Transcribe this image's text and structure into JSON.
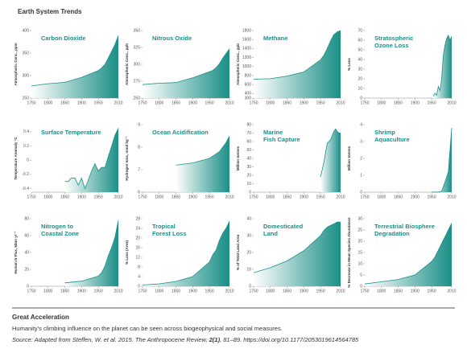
{
  "figure_title": "Earth System Trends",
  "caption": {
    "heading": "Great Acceleration",
    "text": "Humanity's climbing influence on the planet can be seen across biogeophysical and social measures.",
    "source": [
      "Source: Adapted from Steffen, W. et al. 2015. The Anthropocene Review, ",
      "2(1)",
      ", 81–89. https://doi.org/10.1177/2053019614564785"
    ]
  },
  "chart_data": [
    {
      "type": "area",
      "title": [
        "Carbon Dioxide"
      ],
      "y_label": "Atmospheric Conc., ppm",
      "x": [
        1750,
        1800,
        1850,
        1900,
        1950,
        1960,
        1970,
        1980,
        1990,
        2000,
        2010
      ],
      "values": [
        277,
        282,
        285,
        296,
        311,
        317,
        325,
        339,
        354,
        369,
        389
      ],
      "color": "#1a8f86",
      "xlim": [
        1750,
        2010
      ],
      "xticks": [
        1750,
        1800,
        1850,
        1900,
        1950,
        2010
      ],
      "ylim": [
        250,
        400
      ],
      "yticks": [
        250,
        300,
        350,
        400
      ]
    },
    {
      "type": "area",
      "title": [
        "Nitrous Oxide"
      ],
      "y_label": "Atmospheric Conc., ppb",
      "x": [
        1750,
        1800,
        1850,
        1900,
        1950,
        1960,
        1970,
        1980,
        1990,
        2000,
        2010
      ],
      "values": [
        270,
        272,
        273,
        280,
        289,
        291,
        295,
        301,
        309,
        316,
        323
      ],
      "color": "#1a8f86",
      "xlim": [
        1750,
        2010
      ],
      "xticks": [
        1750,
        1800,
        1850,
        1900,
        1950,
        2010
      ],
      "ylim": [
        250,
        350
      ],
      "yticks": [
        250,
        275,
        300,
        325,
        350
      ]
    },
    {
      "type": "area",
      "title": [
        "Methane"
      ],
      "y_label": "Atmospheric Conc., ppb",
      "x": [
        1750,
        1800,
        1850,
        1900,
        1950,
        1960,
        1970,
        1980,
        1990,
        2000,
        2010
      ],
      "values": [
        720,
        730,
        790,
        880,
        1150,
        1250,
        1400,
        1570,
        1710,
        1770,
        1800
      ],
      "color": "#1a8f86",
      "xlim": [
        1750,
        2010
      ],
      "xticks": [
        1750,
        1800,
        1850,
        1900,
        1950,
        2010
      ],
      "ylim": [
        300,
        1800
      ],
      "yticks": [
        300,
        400,
        600,
        800,
        1000,
        1200,
        1400,
        1600,
        1800
      ]
    },
    {
      "type": "area",
      "title": [
        "Stratospheric",
        "Ozone Loss"
      ],
      "y_label": "% Loss",
      "x": [
        1955,
        1960,
        1965,
        1970,
        1975,
        1980,
        1985,
        1990,
        1995,
        2000,
        2005,
        2010
      ],
      "values": [
        2,
        5,
        3,
        12,
        8,
        20,
        45,
        55,
        62,
        65,
        60,
        64
      ],
      "color": "#1a8f86",
      "xlim": [
        1750,
        2010
      ],
      "xticks": [
        1750,
        1800,
        1850,
        1900,
        1950,
        2010
      ],
      "ylim": [
        0,
        70
      ],
      "yticks": [
        0,
        10,
        20,
        30,
        40,
        50,
        60,
        70
      ]
    },
    {
      "type": "area",
      "title": [
        "Surface Temperature"
      ],
      "y_label": "Temperature Anomaly °C",
      "x": [
        1850,
        1860,
        1870,
        1880,
        1890,
        1900,
        1910,
        1920,
        1930,
        1940,
        1950,
        1960,
        1970,
        1980,
        1990,
        2000,
        2010
      ],
      "values": [
        -0.3,
        -0.3,
        -0.25,
        -0.25,
        -0.35,
        -0.25,
        -0.4,
        -0.28,
        -0.15,
        -0.05,
        -0.15,
        -0.1,
        -0.1,
        0.05,
        0.2,
        0.35,
        0.45
      ],
      "color": "#1a8f86",
      "xlim": [
        1750,
        2010
      ],
      "xticks": [
        1750,
        1800,
        1850,
        1900,
        1950,
        2010
      ],
      "ylim": [
        -0.45,
        0.5
      ],
      "yticks": [
        -0.4,
        -0.2,
        0,
        0.2,
        0.4
      ]
    },
    {
      "type": "area",
      "title": [
        "Ocean Acidification"
      ],
      "y_label": "Hydrogen Ions, nmol kg⁻¹",
      "x": [
        1850,
        1900,
        1950,
        1960,
        1970,
        1980,
        1990,
        2000,
        2010
      ],
      "values": [
        7.2,
        7.3,
        7.5,
        7.6,
        7.7,
        7.8,
        8.0,
        8.2,
        8.5
      ],
      "color": "#1a8f86",
      "xlim": [
        1750,
        2010
      ],
      "xticks": [
        1750,
        1800,
        1850,
        1900,
        1950,
        2010
      ],
      "ylim": [
        6,
        9
      ],
      "yticks": [
        6,
        7,
        8,
        9
      ]
    },
    {
      "type": "area",
      "title": [
        "Marine",
        "Fish Capture"
      ],
      "y_label": "Million tonnes",
      "x": [
        1950,
        1960,
        1970,
        1980,
        1990,
        1995,
        2000,
        2005,
        2010
      ],
      "values": [
        18,
        35,
        58,
        62,
        72,
        75,
        72,
        70,
        70
      ],
      "color": "#1a8f86",
      "xlim": [
        1750,
        2010
      ],
      "xticks": [
        1750,
        1800,
        1850,
        1900,
        1950,
        2010
      ],
      "ylim": [
        0,
        80
      ],
      "yticks": [
        0,
        10,
        20,
        30,
        40,
        50,
        60,
        70,
        80
      ]
    },
    {
      "type": "area",
      "title": [
        "Shrimp",
        "Aquaculture"
      ],
      "y_label": "Million tonnes",
      "x": [
        1950,
        1970,
        1980,
        1990,
        2000,
        2005,
        2010
      ],
      "values": [
        0,
        0.01,
        0.05,
        0.6,
        1.2,
        2.5,
        3.8
      ],
      "color": "#1a8f86",
      "xlim": [
        1750,
        2010
      ],
      "xticks": [
        1750,
        1800,
        1850,
        1900,
        1950,
        2010
      ],
      "ylim": [
        0,
        4
      ],
      "yticks": [
        0,
        1,
        2,
        3,
        4
      ]
    },
    {
      "type": "area",
      "title": [
        "Nitrogen to",
        "Coastal Zone"
      ],
      "y_label": "Human N Flux, Mton yr⁻¹",
      "x": [
        1850,
        1900,
        1950,
        1960,
        1970,
        1980,
        1990,
        2000,
        2010
      ],
      "values": [
        4,
        6,
        12,
        16,
        24,
        36,
        46,
        58,
        78
      ],
      "color": "#1a8f86",
      "xlim": [
        1750,
        2010
      ],
      "xticks": [
        1750,
        1800,
        1850,
        1900,
        1950,
        2010
      ],
      "ylim": [
        0,
        80
      ],
      "yticks": [
        0,
        20,
        40,
        60,
        80
      ]
    },
    {
      "type": "area",
      "title": [
        "Tropical",
        "Forest Loss"
      ],
      "y_label": "% Loss (Area)",
      "x": [
        1750,
        1800,
        1850,
        1900,
        1950,
        1960,
        1970,
        1980,
        1990,
        2000,
        2010
      ],
      "values": [
        0.5,
        1,
        2,
        4,
        10,
        13,
        15,
        19,
        22,
        24,
        27
      ],
      "color": "#1a8f86",
      "xlim": [
        1750,
        2010
      ],
      "xticks": [
        1750,
        1800,
        1850,
        1900,
        1950,
        2010
      ],
      "ylim": [
        0,
        28
      ],
      "yticks": [
        0,
        4,
        8,
        12,
        16,
        20,
        24,
        28
      ]
    },
    {
      "type": "area",
      "title": [
        "Domesticated",
        "Land"
      ],
      "y_label": "% of Total Land Area",
      "x": [
        1750,
        1800,
        1850,
        1900,
        1950,
        1960,
        1970,
        1980,
        1990,
        2000,
        2010
      ],
      "values": [
        8,
        11,
        15,
        21,
        30,
        33,
        35,
        36,
        37,
        38,
        38
      ],
      "color": "#1a8f86",
      "xlim": [
        1750,
        2010
      ],
      "xticks": [
        1750,
        1800,
        1850,
        1900,
        1950,
        2010
      ],
      "ylim": [
        0,
        40
      ],
      "yticks": [
        0,
        10,
        20,
        30,
        40
      ]
    },
    {
      "type": "area",
      "title": [
        "Terrestrial Biosphere",
        "Degradation"
      ],
      "y_label": "% Decrease in Mean Species Abundance",
      "x": [
        1750,
        1800,
        1850,
        1900,
        1950,
        1960,
        1970,
        1980,
        1990,
        2000,
        2010
      ],
      "values": [
        1,
        2,
        3,
        5,
        11,
        13,
        16,
        19,
        22,
        25,
        28
      ],
      "color": "#1a8f86",
      "xlim": [
        1750,
        2010
      ],
      "xticks": [
        1750,
        1800,
        1850,
        1900,
        1950,
        2010
      ],
      "ylim": [
        0,
        30
      ],
      "yticks": [
        0,
        5,
        10,
        15,
        20,
        25,
        30
      ]
    }
  ]
}
